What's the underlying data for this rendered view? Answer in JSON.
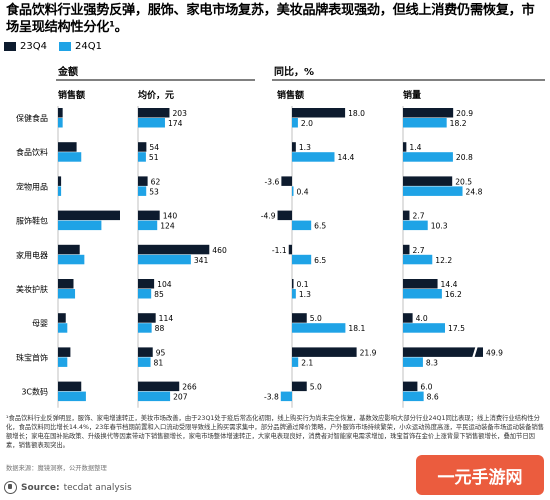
{
  "title": "食品饮料行业强势反弹，服饰、家电市场复苏，美妆品牌表现强劲，但线上消费仍需恢复，市场呈现结构性分化¹。",
  "colors": {
    "q4": "#0d1b2e",
    "q1": "#1fa3e6",
    "text": "#000000"
  },
  "legend": {
    "q4": "23Q4",
    "q1": "24Q1"
  },
  "chart_data": {
    "type": "bar",
    "orientation": "horizontal",
    "series_names": [
      "23Q4",
      "24Q1"
    ],
    "group_labels": {
      "amount": "金额",
      "yoy": "同比，%"
    },
    "categories": [
      "保健食品",
      "食品饮料",
      "宠物用品",
      "服饰鞋包",
      "家用电器",
      "美妆护肤",
      "母婴",
      "珠宝首饰",
      "3C数码"
    ],
    "panels": [
      {
        "id": "sales",
        "label": "销售额",
        "show_values": false,
        "q4": [
          3,
          12,
          2,
          40,
          14,
          10,
          5,
          8,
          15
        ],
        "q1": [
          3,
          15,
          2,
          28,
          17,
          11,
          6,
          6,
          18
        ]
      },
      {
        "id": "price",
        "label": "均价，元",
        "show_values": true,
        "q4": [
          203,
          54,
          62,
          140,
          460,
          104,
          114,
          95,
          266
        ],
        "q1": [
          174,
          51,
          53,
          124,
          341,
          85,
          88,
          81,
          207
        ]
      },
      {
        "id": "sales_yoy",
        "label": "销售额",
        "show_values": true,
        "q4": [
          18.0,
          1.3,
          -3.6,
          -4.9,
          -1.1,
          0.1,
          5.0,
          21.9,
          5.0
        ],
        "q1": [
          2.0,
          14.4,
          0.4,
          6.5,
          6.5,
          1.3,
          18.1,
          2.1,
          -3.8
        ]
      },
      {
        "id": "volume_yoy",
        "label": "销量",
        "show_values": true,
        "q4": [
          20.9,
          1.4,
          20.5,
          2.7,
          2.7,
          14.4,
          4.0,
          49.9,
          6.0
        ],
        "q1": [
          18.2,
          20.8,
          24.8,
          10.3,
          12.2,
          16.2,
          17.5,
          8.3,
          8.6
        ]
      }
    ]
  },
  "footnote": "¹食品饮料行业反弹明显，服饰、家电增速转正，美妆市场改善，由于23Q1处于疫后常态化初期，线上购买行为尚未完全恢复，基数效应影响大部分行业24Q1同比表现；线上消费行业结构性分化，食品饮料同比增长14.4%，23年春节档期前置和入口流动受限导致线上购买需求集中，部分品牌通过降价策略，户外服饰市场持续繁荣，小众运动热度高涨，平民运动装备市场运动装备销售额增长；家电在国补贴政策、升级换代等因素带动下销售额增长，家电市场整体增速转正，大家电表现良好，消费者对智能家电需求增加，珠宝首饰在金价上涨背景下销售额增长，叠加节日因素，销售额表现突出。",
  "source_note": "数据来源：魔镜洞察，公开数据整理",
  "source": {
    "prefix": "Source:",
    "name": "tecdat analysis"
  },
  "watermark": "一元手游网"
}
